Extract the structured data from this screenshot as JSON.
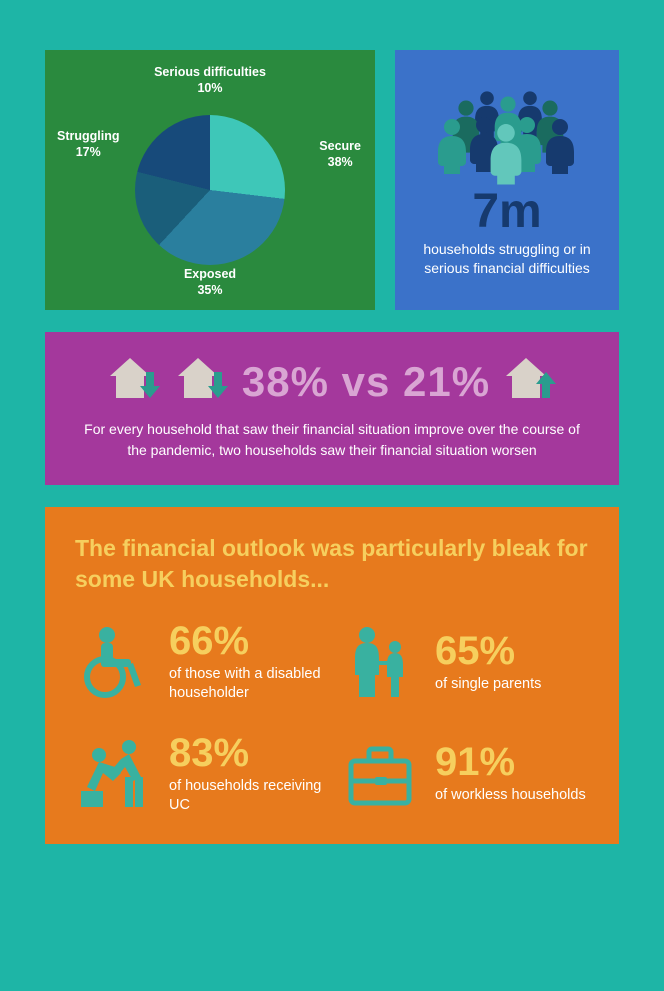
{
  "colors": {
    "page_bg": "#1eb5a6",
    "green_panel": "#2a8a3e",
    "blue_panel": "#3b72c9",
    "purple_panel": "#a4389c",
    "orange_panel": "#e77a1d",
    "yellow": "#f6cf5e",
    "dark_navy": "#163a6e",
    "white": "#ffffff",
    "light_purple": "#d9a5d3",
    "teal_icon": "#39b1a0",
    "pale_house": "#d9d2c9"
  },
  "pie_chart": {
    "type": "pie",
    "slices": [
      {
        "label": "Secure",
        "value": 38,
        "color": "#3ec7b8"
      },
      {
        "label": "Exposed",
        "value": 35,
        "color": "#2a7f9e"
      },
      {
        "label": "Struggling",
        "value": 17,
        "color": "#1a5e7a"
      },
      {
        "label": "Serious difficulties",
        "value": 10,
        "color": "#174a7a"
      }
    ],
    "label_color": "#ffffff",
    "label_fontsize": 12.5,
    "background": "#2a8a3e",
    "start_angle_deg": -40
  },
  "households_stat": {
    "big": "7m",
    "sub": "households struggling or in serious financial difficulties",
    "people_colors": [
      "#163a6e",
      "#1a6b5f",
      "#2a9c8e",
      "#62c7bb",
      "#9be0d8"
    ]
  },
  "purple": {
    "pct_text": "38% vs 21%",
    "caption": "For every household that saw their financial situation improve over the course of the pandemic, two households saw their financial situation worsen",
    "house_down_color": "#d9d2c9",
    "arrow_down_color": "#2a9c8e",
    "house_up_color": "#d9d2c9",
    "arrow_up_color": "#2a9c8e"
  },
  "orange": {
    "title": "The financial outlook was particularly bleak for some UK households...",
    "items": [
      {
        "pct": "66%",
        "desc": "of those with a disabled householder",
        "icon": "wheelchair"
      },
      {
        "pct": "65%",
        "desc": "of single parents",
        "icon": "parent-child"
      },
      {
        "pct": "83%",
        "desc": "of households receiving UC",
        "icon": "helping-hand"
      },
      {
        "pct": "91%",
        "desc": "of workless households",
        "icon": "briefcase"
      }
    ],
    "icon_color": "#39b1a0",
    "pct_color": "#f6cf5e",
    "pct_fontsize": 40,
    "desc_color": "#ffffff",
    "desc_fontsize": 14.5
  }
}
